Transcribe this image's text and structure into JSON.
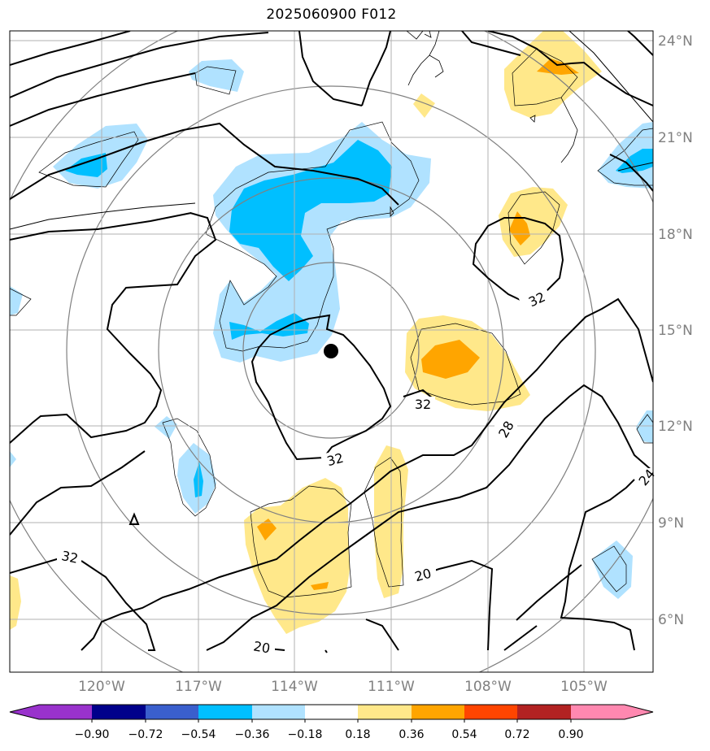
{
  "title": "2025060900 F012",
  "map": {
    "lon_labels": [
      "120°W",
      "117°W",
      "114°W",
      "111°W",
      "108°W",
      "105°W"
    ],
    "lat_labels": [
      "24°N",
      "21°N",
      "18°N",
      "15°N",
      "12°N",
      "9°N",
      "6°N"
    ],
    "contour_labels": [
      "32",
      "32",
      "32",
      "32",
      "28",
      "24",
      "20",
      "20"
    ],
    "storm_center_marker": "filled-circle"
  },
  "colorbar": {
    "tick_labels": [
      "−0.90",
      "−0.72",
      "−0.54",
      "−0.36",
      "−0.18",
      "0.18",
      "0.36",
      "0.54",
      "0.72",
      "0.90"
    ],
    "colors": [
      "#9932CC",
      "#00008B",
      "#3A5FCD",
      "#00BFFF",
      "#B0E2FF",
      "#FFFFFF",
      "#FFE88A",
      "#FFA500",
      "#FF4500",
      "#B22222",
      "#FF88B0"
    ],
    "extend": "both"
  }
}
